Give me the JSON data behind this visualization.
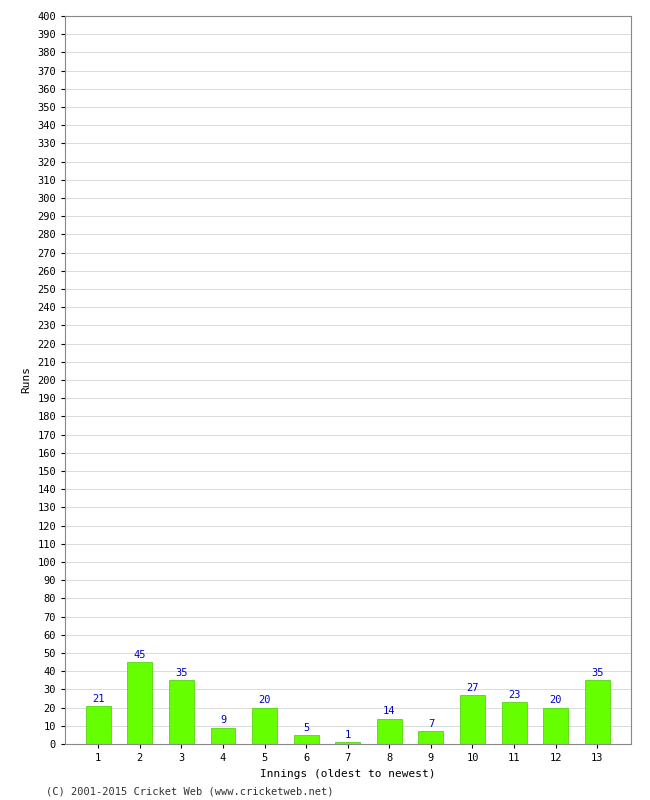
{
  "xlabel": "Innings (oldest to newest)",
  "ylabel": "Runs",
  "categories": [
    "1",
    "2",
    "3",
    "4",
    "5",
    "6",
    "7",
    "8",
    "9",
    "10",
    "11",
    "12",
    "13"
  ],
  "values": [
    21,
    45,
    35,
    9,
    20,
    5,
    1,
    14,
    7,
    27,
    23,
    20,
    35
  ],
  "bar_color": "#66ff00",
  "bar_edge_color": "#44cc00",
  "label_color": "#0000cc",
  "ylim": [
    0,
    400
  ],
  "ytick_step": 10,
  "background_color": "#ffffff",
  "footer_text": "(C) 2001-2015 Cricket Web (www.cricketweb.net)",
  "axis_label_fontsize": 8,
  "tick_fontsize": 7.5,
  "value_label_fontsize": 7.5,
  "footer_fontsize": 7.5
}
